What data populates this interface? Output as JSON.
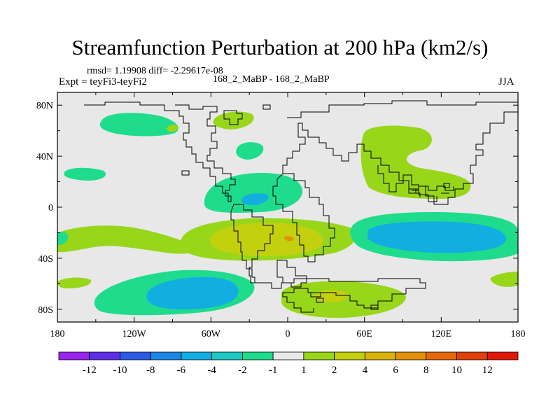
{
  "title": "Streamfunction Perturbation at 200 hPa (km2/s)",
  "header": {
    "stats": "rmsd= 1.19908 diff= -2.29617e-08",
    "expt": "Expt = teyFi3-teyFi2",
    "cases": "168_2_MaBP - 168_2_MaBP",
    "season": "JJA"
  },
  "chart_data": {
    "type": "heatmap",
    "title": "Streamfunction Perturbation at 200 hPa (km2/s)",
    "projection": "cylindrical equidistant",
    "xlim": [
      -180,
      180
    ],
    "ylim": [
      -90,
      90
    ],
    "x_ticks": [
      {
        "value": -180,
        "label": "180"
      },
      {
        "value": -120,
        "label": "120W"
      },
      {
        "value": -60,
        "label": "60W"
      },
      {
        "value": 0,
        "label": "0"
      },
      {
        "value": 60,
        "label": "60E"
      },
      {
        "value": 120,
        "label": "120E"
      },
      {
        "value": 180,
        "label": "180"
      }
    ],
    "y_ticks": [
      {
        "value": 80,
        "label": "80N"
      },
      {
        "value": 40,
        "label": "40N"
      },
      {
        "value": 0,
        "label": "0"
      },
      {
        "value": -40,
        "label": "40S"
      },
      {
        "value": -80,
        "label": "80S"
      }
    ],
    "colorbar": {
      "levels": [
        "-12",
        "-10",
        "-8",
        "-6",
        "-4",
        "-2",
        "-1",
        "1",
        "2",
        "4",
        "6",
        "8",
        "10",
        "12"
      ],
      "colors": [
        "#9a25f0",
        "#5d2ee6",
        "#2a5ae6",
        "#1f86e6",
        "#12aee0",
        "#1cc9c2",
        "#1edc8c",
        "#e8e8e8",
        "#98d61a",
        "#c2d00e",
        "#d8b30a",
        "#e09009",
        "#e2680a",
        "#e04008",
        "#e21806"
      ]
    },
    "features": [
      {
        "name": "N Pacific positive",
        "level": "-2 to -1",
        "lon": -130,
        "lat": 68,
        "rlon": 24,
        "rlat": 10
      },
      {
        "name": "Arctic Atlantic cell",
        "level": "1 to 2",
        "lon": -25,
        "lat": 70,
        "rlon": 15,
        "rlat": 6
      },
      {
        "name": "N Atlantic cell",
        "level": "-2 to -1",
        "lon": -25,
        "lat": 45,
        "rlon": 10,
        "rlat": 7
      },
      {
        "name": "E Pacific cell",
        "level": "-2 to -1",
        "lon": -160,
        "lat": 28,
        "rlon": 14,
        "rlat": 4
      },
      {
        "name": "Tropical Atlantic",
        "level": "-2 to -1",
        "lon": -30,
        "lat": 12,
        "rlon": 28,
        "rlat": 13
      },
      {
        "name": "Tropical Atlantic core",
        "level": "-4 to -2",
        "lon": -25,
        "lat": 5,
        "rlon": 7,
        "rlat": 4
      },
      {
        "name": "Asian monsoon",
        "level": "1 to 2",
        "lon": 90,
        "lat": 35,
        "rlon": 30,
        "rlat": 28
      },
      {
        "name": "Southern subtropics band",
        "level": "1 to 2",
        "lon": -25,
        "lat": -27,
        "rlon": 62,
        "rlat": 11
      },
      {
        "name": "Southern subtropics peak",
        "level": "2 to 4",
        "lon": -5,
        "lat": -25,
        "rlon": 30,
        "rlat": 8
      },
      {
        "name": "Indian Ocean low",
        "level": "-4 to -2",
        "lon": 95,
        "lat": -22,
        "rlon": 50,
        "rlat": 12
      },
      {
        "name": "S Pacific low",
        "level": "-4 to -2",
        "lon": -100,
        "lat": -70,
        "rlon": 30,
        "rlat": 9
      },
      {
        "name": "Antarctic Atlantic",
        "level": "1 to 2",
        "lon": 30,
        "lat": -74,
        "rlon": 28,
        "rlat": 8
      }
    ]
  }
}
